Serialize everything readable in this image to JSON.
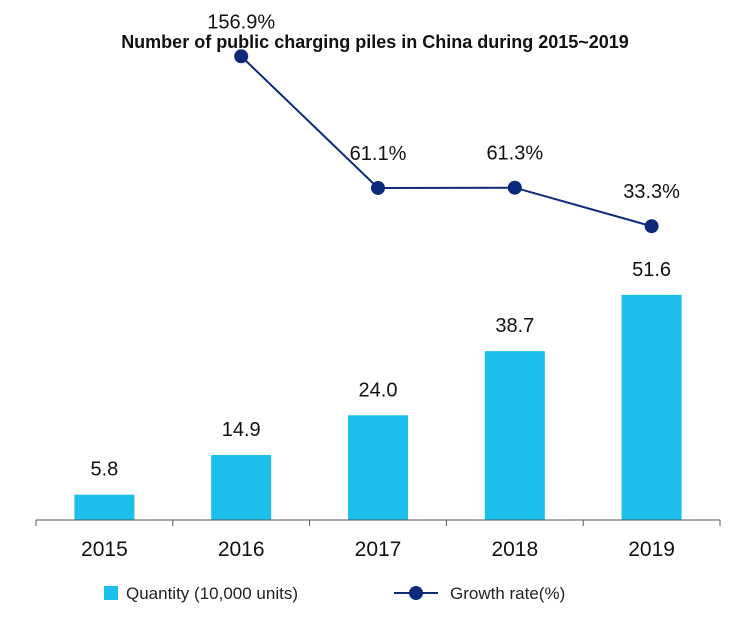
{
  "chart_data": {
    "type": "bar",
    "title": "Number of public charging piles in China during 2015~2019",
    "categories": [
      "2015",
      "2016",
      "2017",
      "2018",
      "2019"
    ],
    "series": [
      {
        "name": "Quantity (10,000 units)",
        "type": "bar",
        "values": [
          5.8,
          14.9,
          24.0,
          38.7,
          51.6
        ],
        "labels": [
          "5.8",
          "14.9",
          "24.0",
          "38.7",
          "51.6"
        ],
        "color": "#1ABFEB"
      },
      {
        "name": "Growth rate(%)",
        "type": "line",
        "values": [
          null,
          156.9,
          61.1,
          61.3,
          33.3
        ],
        "labels": [
          "",
          "156.9%",
          "61.1%",
          "61.3%",
          "33.3%"
        ],
        "color": "#0D2A7A"
      }
    ],
    "xlabel": "",
    "ylabel": "",
    "ylim_bar": [
      0,
      55
    ],
    "ylim_line": [
      0,
      160
    ],
    "grid": false,
    "legend_position": "bottom"
  }
}
